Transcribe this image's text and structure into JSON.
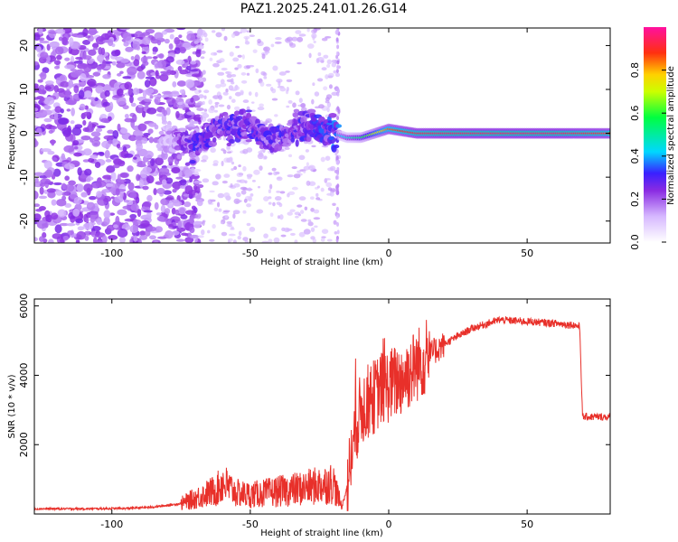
{
  "title": "PAZ1.2025.241.01.26.G14",
  "chart_data": [
    {
      "type": "heatmap",
      "title": "PAZ1.2025.241.01.26.G14",
      "xlabel": "Height of straight line (km)",
      "ylabel": "Frequency (Hz)",
      "xlim": [
        -128,
        80
      ],
      "ylim": [
        -25,
        24
      ],
      "xticks": [
        -100,
        -50,
        0,
        50
      ],
      "xtick_labels": [
        "-100",
        "-50",
        "0",
        "50"
      ],
      "yticks": [
        -20,
        -10,
        0,
        10,
        20
      ],
      "ytick_labels": [
        "-20",
        "-10",
        "0",
        "10",
        "20"
      ],
      "colorbar": {
        "label": "Normalized spectral amplitude",
        "range": [
          0,
          1
        ],
        "ticks": [
          0.0,
          0.2,
          0.4,
          0.6,
          0.8
        ],
        "tick_labels": [
          "0.0",
          "0.2",
          "0.4",
          "0.6",
          "0.8"
        ]
      },
      "ridge": {
        "x": [
          -80,
          -70,
          -60,
          -50,
          -40,
          -30,
          -20,
          -15,
          -10,
          -5,
          0,
          10,
          20,
          40,
          60,
          80
        ],
        "frequency": [
          -1,
          -3,
          2,
          1,
          -1,
          2,
          0,
          -1,
          -1,
          0,
          1,
          0,
          0,
          0,
          0,
          0
        ],
        "amplitude": [
          0.15,
          0.3,
          0.3,
          0.3,
          0.3,
          0.3,
          0.35,
          0.45,
          0.55,
          0.7,
          0.85,
          0.92,
          0.95,
          0.95,
          0.95,
          0.9
        ]
      }
    },
    {
      "type": "line",
      "xlabel": "Height of straight line (km)",
      "ylabel": "SNR (10 * v/v)",
      "xlim": [
        -128,
        80
      ],
      "ylim": [
        0,
        6200
      ],
      "xticks": [
        -100,
        -50,
        0,
        50
      ],
      "xtick_labels": [
        "-100",
        "-50",
        "0",
        "50"
      ],
      "yticks": [
        2000,
        4000,
        6000
      ],
      "ytick_labels": [
        "2000",
        "4000",
        "6000"
      ],
      "color": "#e8302a",
      "series": [
        {
          "name": "SNR",
          "x": [
            -128,
            -110,
            -95,
            -85,
            -75,
            -70,
            -62,
            -60,
            -55,
            -50,
            -40,
            -30,
            -20,
            -17,
            -15,
            -12,
            -10,
            -8,
            -5,
            -3,
            0,
            5,
            10,
            15,
            20,
            30,
            40,
            50,
            60,
            67,
            69,
            70,
            75,
            80
          ],
          "y": [
            150,
            150,
            160,
            200,
            300,
            450,
            700,
            900,
            600,
            550,
            650,
            750,
            900,
            200,
            800,
            2500,
            3000,
            3200,
            3400,
            3600,
            3700,
            3900,
            4300,
            4600,
            4900,
            5350,
            5600,
            5550,
            5500,
            5450,
            5400,
            2800,
            2800,
            2800
          ]
        }
      ]
    }
  ]
}
